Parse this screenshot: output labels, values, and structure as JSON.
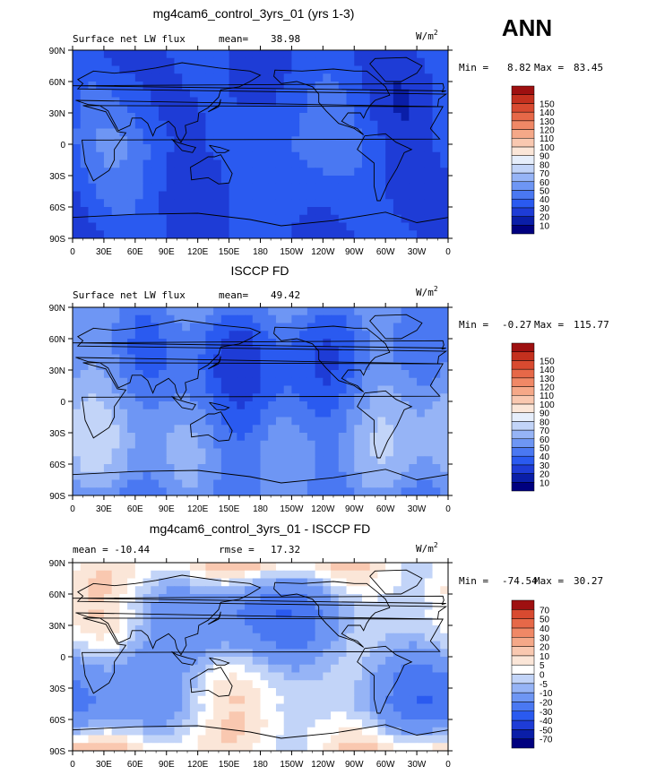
{
  "season": "ANN",
  "x_ticks": [
    "0",
    "30E",
    "60E",
    "90E",
    "120E",
    "150E",
    "180",
    "150W",
    "120W",
    "90W",
    "60W",
    "30W",
    "0"
  ],
  "y_ticks": [
    "90N",
    "60N",
    "30N",
    "0",
    "30S",
    "60S",
    "90S"
  ],
  "colors": {
    "abs_scale": [
      "#00007f",
      "#0a1ea8",
      "#1e3cd6",
      "#2a5af0",
      "#4a78f2",
      "#6e96f4",
      "#96b4f6",
      "#c2d4f8",
      "#e6eefb",
      "#fbe6d8",
      "#f9c8b0",
      "#f5a888",
      "#f08866",
      "#e66848",
      "#d84a30",
      "#c4301e",
      "#9e1010"
    ],
    "diff_scale": [
      "#00007f",
      "#0a1ea8",
      "#1e3cd6",
      "#2a5af0",
      "#4a78f2",
      "#6e96f4",
      "#96b4f6",
      "#c2d4f8",
      "#ffffff",
      "#fbe6d8",
      "#f9c8b0",
      "#f5a888",
      "#f08866",
      "#e66848",
      "#d84a30",
      "#9e1010"
    ],
    "coast": "#000000"
  },
  "chart_data": [
    {
      "type": "heatmap",
      "title": "mg4cam6_control_3yrs_01 (yrs 1-3)",
      "left_label": "Surface net LW flux",
      "stat_label": "mean=",
      "stat_value": "38.98",
      "units": "W/m",
      "units_sup": "2",
      "min_label": "Min =",
      "min_value": "8.82",
      "max_label": "Max =",
      "max_value": "83.45",
      "colorbar_levels": [
        "10",
        "20",
        "30",
        "40",
        "50",
        "60",
        "70",
        "80",
        "90",
        "100",
        "110",
        "120",
        "130",
        "140",
        "150"
      ],
      "x_range": [
        0,
        360
      ],
      "y_range": [
        -90,
        90
      ],
      "palette": "abs"
    },
    {
      "type": "heatmap",
      "title": "ISCCP FD",
      "left_label": "Surface net LW flux",
      "stat_label": "mean=",
      "stat_value": "49.42",
      "units": "W/m",
      "units_sup": "2",
      "min_label": "Min =",
      "min_value": "-0.27",
      "max_label": "Max =",
      "max_value": "115.77",
      "colorbar_levels": [
        "10",
        "20",
        "30",
        "40",
        "50",
        "60",
        "70",
        "80",
        "90",
        "100",
        "110",
        "120",
        "130",
        "140",
        "150"
      ],
      "x_range": [
        0,
        360
      ],
      "y_range": [
        -90,
        90
      ],
      "palette": "abs"
    },
    {
      "type": "heatmap",
      "title": "mg4cam6_control_3yrs_01 - ISCCP FD",
      "left_label": "mean = -10.44",
      "stat_label": "rmse =",
      "stat_value": "17.32",
      "units": "W/m",
      "units_sup": "2",
      "min_label": "Min =",
      "min_value": "-74.54",
      "max_label": "Max =",
      "max_value": "30.27",
      "colorbar_levels": [
        "-70",
        "-50",
        "-40",
        "-30",
        "-20",
        "-10",
        "-5",
        "0",
        "5",
        "10",
        "20",
        "30",
        "40",
        "50",
        "70"
      ],
      "x_range": [
        0,
        360
      ],
      "y_range": [
        -90,
        90
      ],
      "palette": "diff"
    }
  ]
}
